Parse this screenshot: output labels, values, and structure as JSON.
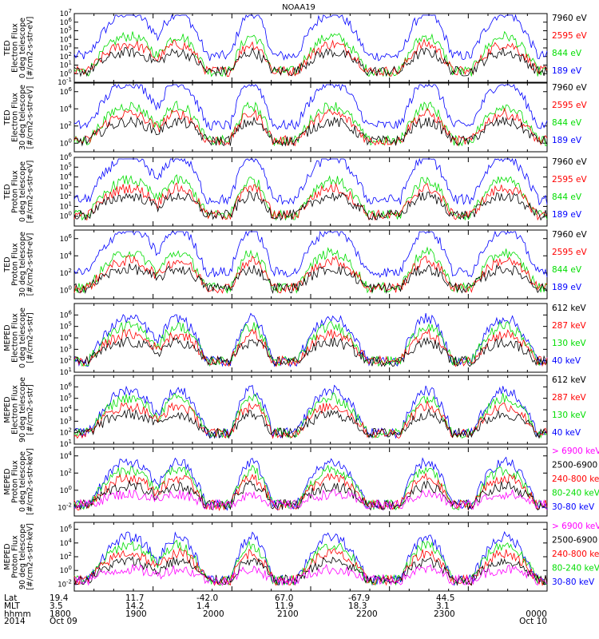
{
  "chart_data": {
    "type": "line",
    "title": "NOAA19",
    "x_range": [
      "2014-10-09 18:00",
      "2014-10-10 00:00"
    ],
    "log_scale_y": true,
    "colors": {
      "blue": "#0000ff",
      "green": "#00dd00",
      "red": "#ff0000",
      "black": "#000000",
      "magenta": "#ff00ff"
    },
    "panels": [
      {
        "ylabel": [
          "TED",
          "Electron Flux",
          "0 deg telescope",
          "[#/cm2-s-str-eV]"
        ],
        "ytick_labels": [
          "10^-1",
          "10^0",
          "10^1",
          "10^2",
          "10^3",
          "10^4",
          "10^5",
          "10^6",
          "10^7"
        ],
        "ylim_exp": [
          -1,
          7
        ],
        "legend": [
          {
            "text": "7960 eV",
            "color": "black"
          },
          {
            "text": "2595 eV",
            "color": "red"
          },
          {
            "text": "844 eV",
            "color": "green"
          },
          {
            "text": "189 eV",
            "color": "blue"
          }
        ]
      },
      {
        "ylabel": [
          "TED",
          "Electron Flux",
          "30 deg telescope",
          "[#/cm2-s-str-eV]"
        ],
        "ytick_labels": [
          "10^0",
          "10^2",
          "10^4",
          "10^6"
        ],
        "ylim_exp": [
          -1,
          7
        ],
        "legend": [
          {
            "text": "7960 eV",
            "color": "black"
          },
          {
            "text": "2595 eV",
            "color": "red"
          },
          {
            "text": "844 eV",
            "color": "green"
          },
          {
            "text": "189 eV",
            "color": "blue"
          }
        ]
      },
      {
        "ylabel": [
          "TED",
          "Proton Flux",
          "0 deg telescope",
          "[#/cm2-s-str-eV]"
        ],
        "ytick_labels": [
          "10^0",
          "10^1",
          "10^2",
          "10^3",
          "10^4",
          "10^5",
          "10^6"
        ],
        "ylim_exp": [
          -1,
          6
        ],
        "legend": [
          {
            "text": "7960 eV",
            "color": "black"
          },
          {
            "text": "2595 eV",
            "color": "red"
          },
          {
            "text": "844 eV",
            "color": "green"
          },
          {
            "text": "189 eV",
            "color": "blue"
          }
        ]
      },
      {
        "ylabel": [
          "TED",
          "Proton Flux",
          "30 deg telescope",
          "[#/cm2-s-str-eV]"
        ],
        "ytick_labels": [
          "10^0",
          "10^2",
          "10^4",
          "10^6"
        ],
        "ylim_exp": [
          -1,
          7
        ],
        "legend": [
          {
            "text": "7960 eV",
            "color": "black"
          },
          {
            "text": "2595 eV",
            "color": "red"
          },
          {
            "text": "844 eV",
            "color": "green"
          },
          {
            "text": "189 eV",
            "color": "blue"
          }
        ]
      },
      {
        "ylabel": [
          "MEPED",
          "Electron Flux",
          "0 deg telescope",
          "[#/cm2-s-str]"
        ],
        "ytick_labels": [
          "10^1",
          "10^2",
          "10^3",
          "10^4",
          "10^5",
          "10^6"
        ],
        "ylim_exp": [
          1,
          7
        ],
        "legend": [
          {
            "text": "612 keV",
            "color": "black"
          },
          {
            "text": "287 keV",
            "color": "red"
          },
          {
            "text": "130 keV",
            "color": "green"
          },
          {
            "text": "40 keV",
            "color": "blue"
          }
        ]
      },
      {
        "ylabel": [
          "MEPED",
          "Electron Flux",
          "90 deg telescope",
          "[#/cm2-s-str]"
        ],
        "ytick_labels": [
          "10^1",
          "10^2",
          "10^3",
          "10^4",
          "10^5",
          "10^6"
        ],
        "ylim_exp": [
          1,
          7
        ],
        "legend": [
          {
            "text": "612 keV",
            "color": "black"
          },
          {
            "text": "287 keV",
            "color": "red"
          },
          {
            "text": "130 keV",
            "color": "green"
          },
          {
            "text": "40 keV",
            "color": "blue"
          }
        ]
      },
      {
        "ylabel": [
          "MEPED",
          "Proton Flux",
          "0 deg telescope",
          "[#/cm2-s-str-keV]"
        ],
        "ytick_labels": [
          "10^-2",
          "10^0",
          "10^2",
          "10^4"
        ],
        "ylim_exp": [
          -3,
          5
        ],
        "legend": [
          {
            "text": "> 6900 keV",
            "color": "magenta"
          },
          {
            "text": "2500-6900",
            "color": "black"
          },
          {
            "text": "240-800 ke",
            "color": "red"
          },
          {
            "text": "80-240 keV",
            "color": "green"
          },
          {
            "text": "30-80 keV",
            "color": "blue"
          }
        ]
      },
      {
        "ylabel": [
          "MEPED",
          "Proton Flux",
          "90 deg telescope",
          "[#/cm2-s-str-keV]"
        ],
        "ytick_labels": [
          "10^-2",
          "10^0",
          "10^2",
          "10^4",
          "10^6"
        ],
        "ylim_exp": [
          -3,
          7
        ],
        "legend": [
          {
            "text": "> 6900 keV",
            "color": "magenta"
          },
          {
            "text": "2500-6900",
            "color": "black"
          },
          {
            "text": "240-800 keV",
            "color": "red"
          },
          {
            "text": "80-240 keV",
            "color": "green"
          },
          {
            "text": "30-80 keV",
            "color": "blue"
          }
        ]
      }
    ],
    "x_axis_rows": [
      {
        "label": "Lat",
        "values": [
          "19.4",
          "11.7",
          "-42.0",
          "67.0",
          "-67.9",
          "44.5"
        ]
      },
      {
        "label": "MLT",
        "values": [
          "3.5",
          "14.2",
          "1.4",
          "11.9",
          "18.3",
          "3.1"
        ]
      },
      {
        "label": "hhmm",
        "values": [
          "1800",
          "1900",
          "2000",
          "2100",
          "2200",
          "2300",
          "0000"
        ]
      },
      {
        "label": "2014",
        "values": [
          "Oct 09",
          "Oct 10"
        ]
      }
    ]
  }
}
